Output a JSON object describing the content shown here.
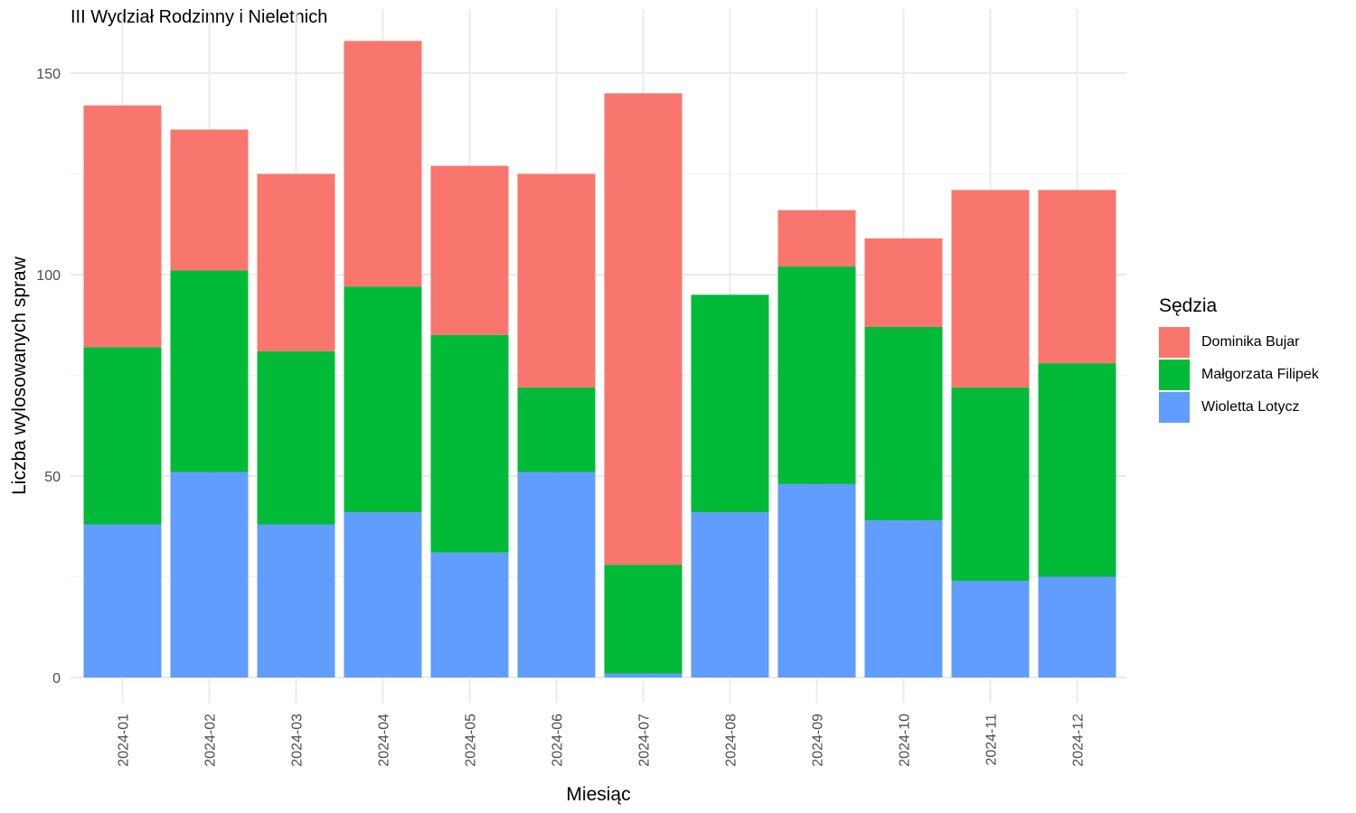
{
  "chart_data": {
    "type": "bar",
    "stacked": true,
    "title": "III Wydział Rodzinny i Nieletnich",
    "xlabel": "Miesiąc",
    "ylabel": "Liczba wylosowanych spraw",
    "ylim": [
      0,
      160
    ],
    "yticks": [
      0,
      50,
      100,
      150
    ],
    "grid": true,
    "legend_title": "Sędzia",
    "legend_position": "right",
    "categories": [
      "2024-01",
      "2024-02",
      "2024-03",
      "2024-04",
      "2024-05",
      "2024-06",
      "2024-07",
      "2024-08",
      "2024-09",
      "2024-10",
      "2024-11",
      "2024-12"
    ],
    "series": [
      {
        "name": "Wioletta Lotycz",
        "color": "#619CFF",
        "values": [
          38,
          51,
          38,
          41,
          31,
          51,
          1,
          41,
          48,
          39,
          24,
          25
        ]
      },
      {
        "name": "Małgorzata Filipek",
        "color": "#00BA38",
        "values": [
          44,
          50,
          43,
          56,
          54,
          21,
          27,
          54,
          54,
          48,
          48,
          53
        ]
      },
      {
        "name": "Dominika Bujar",
        "color": "#F8766D",
        "values": [
          60,
          35,
          44,
          61,
          42,
          53,
          117,
          0,
          14,
          22,
          49,
          43
        ]
      }
    ],
    "legend_order": [
      "Dominika Bujar",
      "Małgorzata Filipek",
      "Wioletta Lotycz"
    ]
  }
}
